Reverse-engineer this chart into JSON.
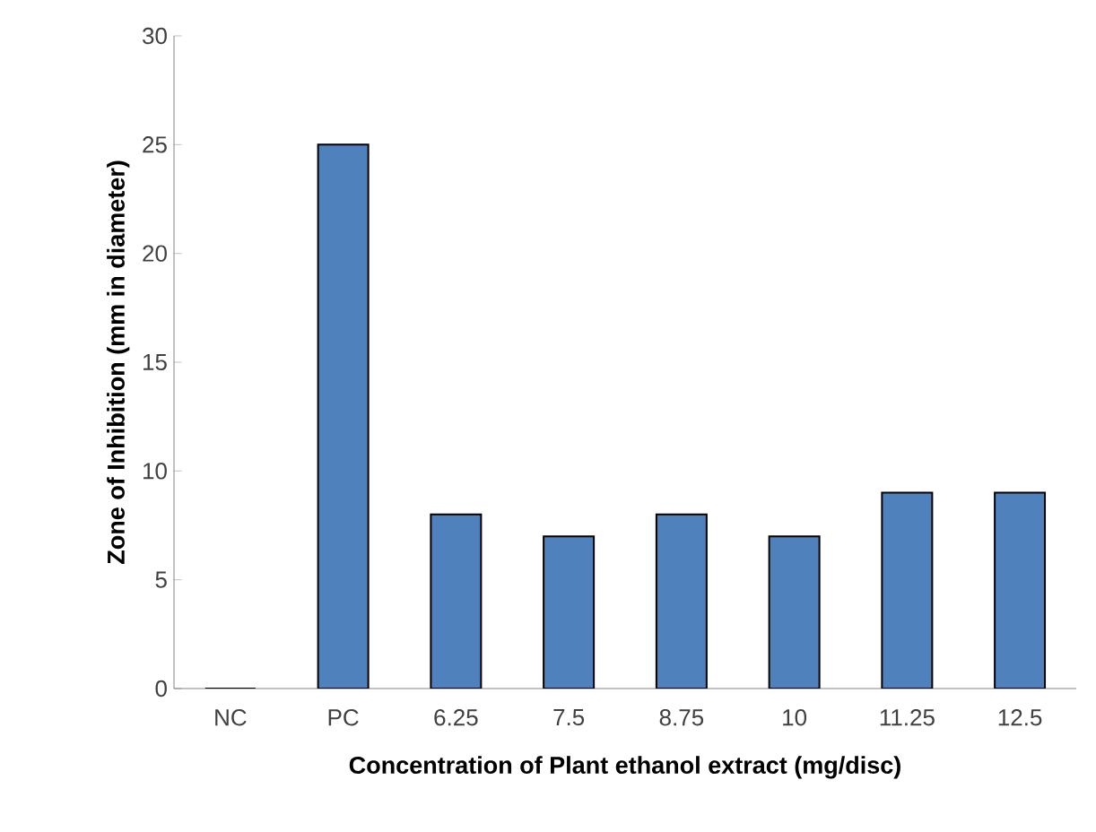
{
  "chart_data": {
    "type": "bar",
    "xlabel": "Concentration of Plant ethanol extract (mg/disc)",
    "ylabel": "Zone of Inhibition (mm in diameter)",
    "categories": [
      "NC",
      "PC",
      "6.25",
      "7.5",
      "8.75",
      "10",
      "11.25",
      "12.5"
    ],
    "values": [
      0,
      25,
      8,
      7,
      8,
      7,
      9,
      9
    ],
    "color": "#4f81bd",
    "ylim": [
      0,
      30
    ],
    "yticks": [
      0,
      5,
      10,
      15,
      20,
      25,
      30
    ],
    "grid": false
  }
}
